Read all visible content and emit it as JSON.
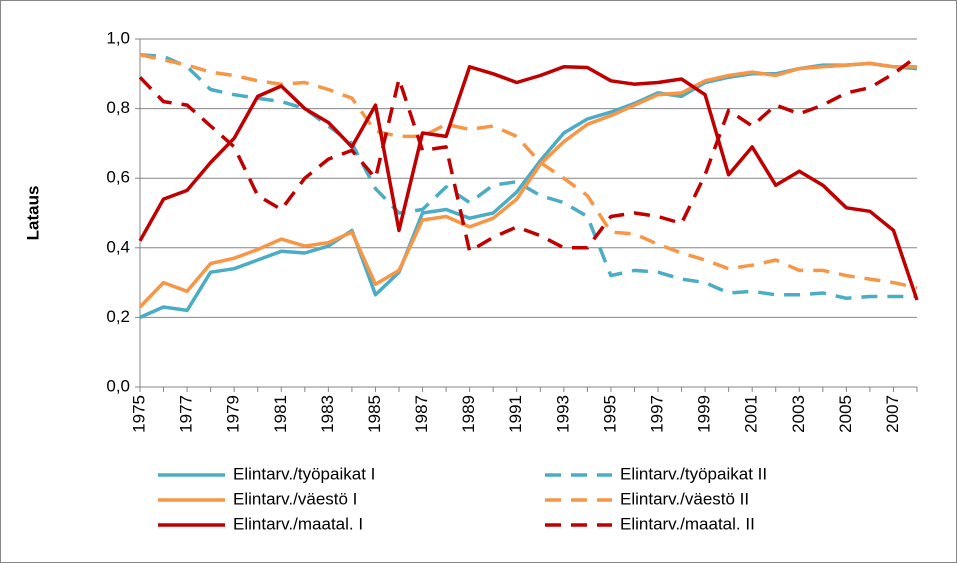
{
  "chart_data": {
    "type": "line",
    "y_label": "Lataus",
    "categories": [
      "1975",
      null,
      "1977",
      null,
      "1979",
      null,
      "1981",
      null,
      "1983",
      null,
      "1985",
      null,
      "1987",
      null,
      "1989",
      null,
      "1991",
      null,
      "1993",
      null,
      "1995",
      null,
      "1997",
      null,
      "1999",
      null,
      "2001",
      null,
      "2003",
      null,
      "2005",
      null,
      "2007",
      null
    ],
    "ylim": [
      0,
      1
    ],
    "yticks": [
      {
        "value": 0,
        "label": "0,0"
      },
      {
        "value": 0.2,
        "label": "0,2"
      },
      {
        "value": 0.4,
        "label": "0,4"
      },
      {
        "value": 0.6,
        "label": "0,6"
      },
      {
        "value": 0.8,
        "label": "0,8"
      },
      {
        "value": 1,
        "label": "1,0"
      }
    ],
    "grid": true,
    "legend": "bottom",
    "series": [
      {
        "name": "Elintarv./työpaikat I",
        "color": "#4bacc6",
        "dashed": false,
        "values": [
          0.2,
          0.23,
          0.22,
          0.33,
          0.34,
          0.365,
          0.39,
          0.385,
          0.405,
          0.45,
          0.265,
          0.33,
          0.5,
          0.51,
          0.485,
          0.5,
          0.56,
          0.65,
          0.73,
          0.77,
          0.79,
          0.815,
          0.845,
          0.835,
          0.875,
          0.89,
          0.9,
          0.9,
          0.915,
          0.925,
          0.925,
          0.93,
          0.92,
          0.915
        ]
      },
      {
        "name": "Elintarv./työpaikat II",
        "color": "#4bacc6",
        "dashed": true,
        "values": [
          0.955,
          0.95,
          0.92,
          0.855,
          0.84,
          0.83,
          0.82,
          0.8,
          0.75,
          0.7,
          0.57,
          0.5,
          0.51,
          0.575,
          0.53,
          0.58,
          0.59,
          0.55,
          0.53,
          0.49,
          0.32,
          0.335,
          0.33,
          0.31,
          0.3,
          0.27,
          0.275,
          0.265,
          0.265,
          0.27,
          0.255,
          0.26,
          0.26,
          0.26
        ]
      },
      {
        "name": "Elintarv./väestö I",
        "color": "#f79646",
        "dashed": false,
        "values": [
          0.23,
          0.3,
          0.275,
          0.355,
          0.37,
          0.395,
          0.425,
          0.405,
          0.415,
          0.445,
          0.295,
          0.335,
          0.48,
          0.49,
          0.46,
          0.485,
          0.54,
          0.64,
          0.705,
          0.755,
          0.78,
          0.81,
          0.84,
          0.845,
          0.88,
          0.895,
          0.905,
          0.895,
          0.915,
          0.92,
          0.925,
          0.93,
          0.92,
          0.92
        ]
      },
      {
        "name": "Elintarv./väestö II",
        "color": "#f79646",
        "dashed": true,
        "values": [
          0.955,
          0.94,
          0.925,
          0.905,
          0.895,
          0.88,
          0.87,
          0.875,
          0.855,
          0.83,
          0.735,
          0.72,
          0.72,
          0.755,
          0.74,
          0.75,
          0.72,
          0.645,
          0.6,
          0.55,
          0.445,
          0.44,
          0.41,
          0.385,
          0.365,
          0.34,
          0.35,
          0.365,
          0.335,
          0.335,
          0.32,
          0.31,
          0.3,
          0.285
        ]
      },
      {
        "name": "Elintarv./maatal. I",
        "color": "#c00000",
        "dashed": false,
        "values": [
          0.42,
          0.54,
          0.565,
          0.645,
          0.715,
          0.835,
          0.865,
          0.8,
          0.76,
          0.69,
          0.81,
          0.45,
          0.73,
          0.72,
          0.92,
          0.9,
          0.875,
          0.895,
          0.92,
          0.918,
          0.88,
          0.87,
          0.875,
          0.885,
          0.84,
          0.61,
          0.69,
          0.58,
          0.62,
          0.58,
          0.515,
          0.505,
          0.45,
          0.25
        ]
      },
      {
        "name": "Elintarv./maatal. II",
        "color": "#c00000",
        "dashed": true,
        "values": [
          0.89,
          0.82,
          0.81,
          0.75,
          0.69,
          0.55,
          0.51,
          0.6,
          0.655,
          0.68,
          0.6,
          0.885,
          0.68,
          0.69,
          0.39,
          0.43,
          0.46,
          0.435,
          0.4,
          0.4,
          0.49,
          0.5,
          0.49,
          0.47,
          0.61,
          0.795,
          0.75,
          0.81,
          0.785,
          0.81,
          0.845,
          0.86,
          0.9,
          0.95
        ]
      }
    ]
  }
}
